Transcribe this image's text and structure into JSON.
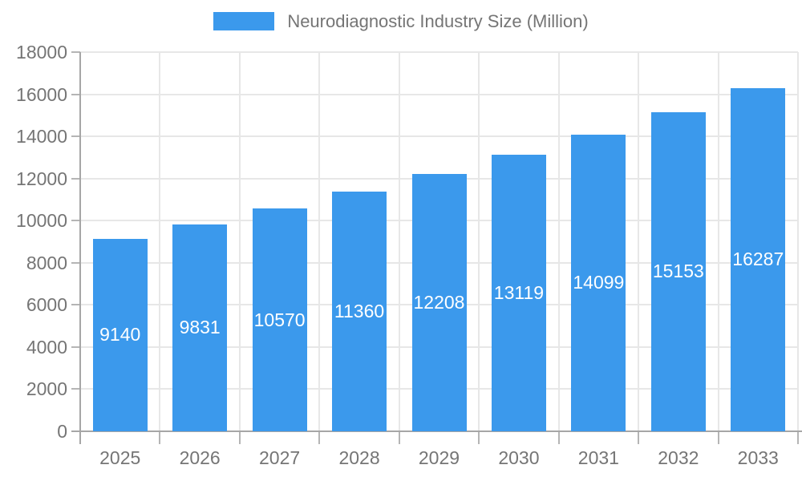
{
  "chart_data": {
    "type": "bar",
    "title": "Neurodiagnostic Industry Size (Million)",
    "categories": [
      "2025",
      "2026",
      "2027",
      "2028",
      "2029",
      "2030",
      "2031",
      "2032",
      "2033"
    ],
    "values": [
      9140,
      9831,
      10570,
      11360,
      12208,
      13119,
      14099,
      15153,
      16287
    ],
    "xlabel": "",
    "ylabel": "",
    "ylim": [
      0,
      18000
    ],
    "yticks": [
      0,
      2000,
      4000,
      6000,
      8000,
      10000,
      12000,
      14000,
      16000,
      18000
    ],
    "grid": true,
    "legend_position": "top",
    "bar_color": "#3b99ec",
    "value_label_color": "#ffffff",
    "axis_text_color": "#757575"
  }
}
